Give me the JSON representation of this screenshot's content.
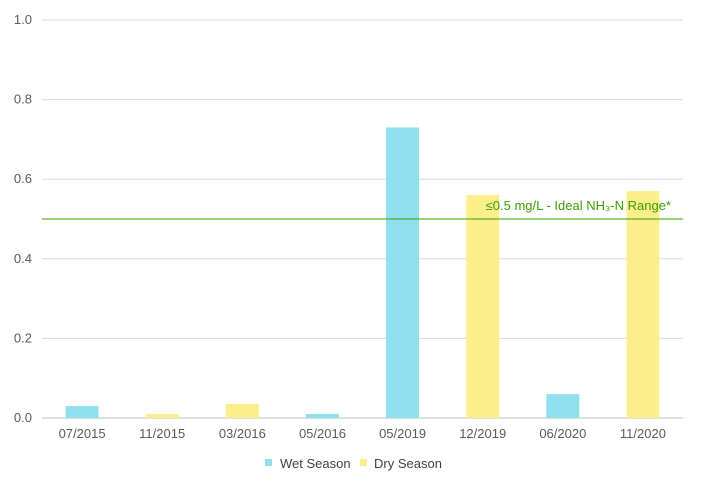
{
  "chart_data": {
    "type": "bar",
    "categories": [
      "07/2015",
      "11/2015",
      "03/2016",
      "05/2016",
      "05/2019",
      "12/2019",
      "06/2020",
      "11/2020"
    ],
    "series": [
      {
        "name": "Wet Season",
        "color": "#8ee1ec",
        "values": [
          0.03,
          null,
          null,
          0.01,
          0.73,
          null,
          0.06,
          null
        ]
      },
      {
        "name": "Dry Season",
        "color": "#fdee8c",
        "values": [
          null,
          0.01,
          0.035,
          null,
          null,
          0.56,
          null,
          0.57
        ]
      }
    ],
    "ylim": [
      0,
      1.0
    ],
    "yticks": [
      "0.0",
      "0.2",
      "0.4",
      "0.6",
      "0.8",
      "1.0"
    ],
    "grid": true,
    "legend_position": "bottom",
    "reference_line": {
      "value": 0.5,
      "label": "≤0.5 mg/L - Ideal NH₃-N Range*",
      "color": "#3aa000"
    },
    "title": "",
    "xlabel": "",
    "ylabel": ""
  }
}
